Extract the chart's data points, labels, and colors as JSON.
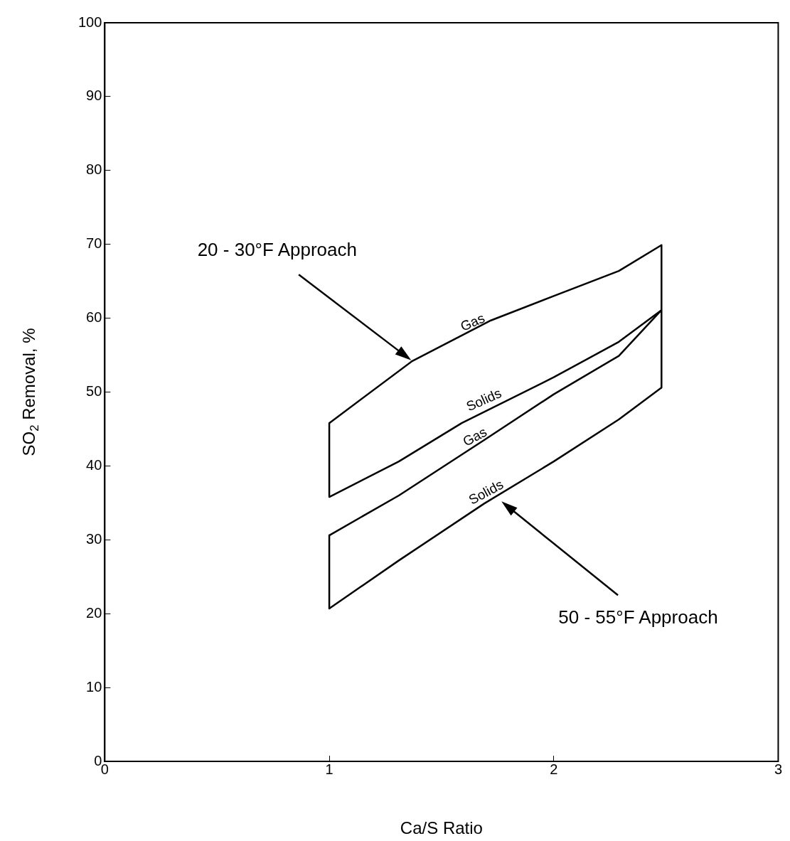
{
  "chart_data": {
    "type": "line",
    "xlabel": "Ca/S Ratio",
    "ylabel": "SO$_{2}$ Removal, %",
    "xlim": [
      0,
      3
    ],
    "ylim": [
      0,
      100
    ],
    "xticks": [
      0,
      1,
      2,
      3
    ],
    "yticks": [
      0,
      10,
      20,
      30,
      40,
      50,
      60,
      70,
      80,
      90,
      100
    ],
    "grid": false,
    "legend": false,
    "marker": "none",
    "line_style": "solid",
    "series": [
      {
        "color": "#000000",
        "x": [
          1,
          1.37,
          1.72,
          2,
          2.29,
          2.48
        ],
        "values": [
          45.8,
          54.2,
          59.7,
          63,
          66.4,
          69.9
        ]
      },
      {
        "color": "#000000",
        "x": [
          1,
          1.31,
          1.59,
          2,
          2.29,
          2.48
        ],
        "values": [
          35.8,
          40.6,
          45.8,
          52,
          56.8,
          61.1
        ]
      },
      {
        "color": "#000000",
        "x": [
          1,
          1.31,
          1.69,
          2,
          2.29,
          2.48
        ],
        "values": [
          30.6,
          36,
          43.5,
          49.7,
          54.9,
          61.1
        ]
      },
      {
        "color": "#000000",
        "x": [
          1,
          1.31,
          1.69,
          2,
          2.29,
          2.48
        ],
        "values": [
          20.7,
          27.2,
          34.9,
          40.6,
          46.3,
          50.6
        ]
      },
      {
        "color": "#000000",
        "x": [
          1,
          1
        ],
        "values": [
          45.8,
          35.8
        ]
      },
      {
        "color": "#000000",
        "x": [
          1,
          1
        ],
        "values": [
          30.6,
          20.7
        ]
      },
      {
        "color": "#000000",
        "x": [
          2.48,
          2.48
        ],
        "values": [
          69.9,
          50.6
        ]
      }
    ],
    "annotations": [
      "20 - 30°F Approach",
      {
        "text": "Gas",
        "x": 1.64,
        "y": 58
      },
      {
        "text": "Solids",
        "x": 1.69,
        "y": 47.5
      },
      {
        "text": "Gas",
        "x": 1.65,
        "y": 42.5
      },
      {
        "text": "Solids",
        "x": 1.7,
        "y": 35
      },
      "50 - 55°F Approach"
    ]
  }
}
